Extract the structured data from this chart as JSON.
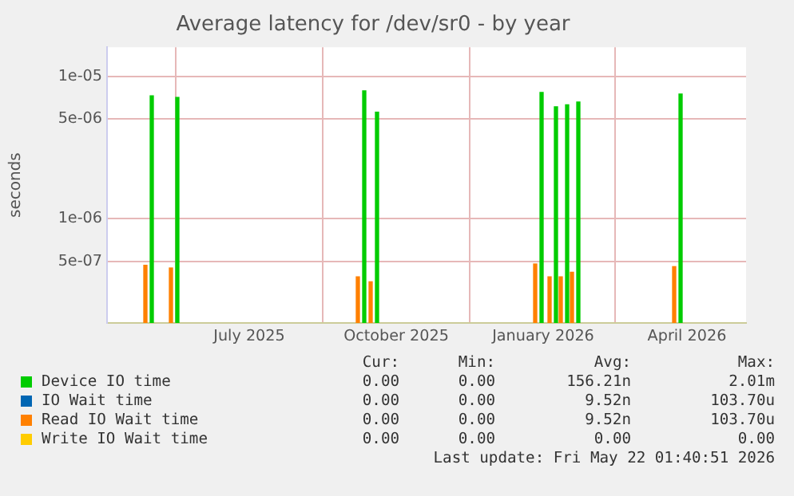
{
  "chart_data": {
    "type": "bar",
    "title": "Average latency for /dev/sr0 - by year",
    "ylabel": "seconds",
    "log": "y",
    "grid": true,
    "legend": "bottom",
    "xlim": [
      "2025-04-17",
      "2026-05-22"
    ],
    "xticks": [
      {
        "value": "2025-07-15",
        "label": "July 2025"
      },
      {
        "value": "2025-10-15",
        "label": "October 2025"
      },
      {
        "value": "2026-01-15",
        "label": "January 2026"
      },
      {
        "value": "2026-04-15",
        "label": "April 2026"
      }
    ],
    "ylim": [
      1.85e-07,
      1.6e-05
    ],
    "yticks": [
      {
        "value": 5e-07,
        "label": "5e-07"
      },
      {
        "value": 1e-06,
        "label": "1e-06"
      },
      {
        "value": 5e-06,
        "label": "5e-06"
      },
      {
        "value": 1e-05,
        "label": "1e-05"
      }
    ],
    "x": [
      "2025-05-12",
      "2025-05-28",
      "2025-09-22",
      "2025-09-30",
      "2026-01-11",
      "2026-01-20",
      "2026-01-27",
      "2026-02-03",
      "2026-04-08"
    ],
    "series": [
      {
        "name": "Device IO time",
        "color": "#00cc00",
        "values": [
          7.3e-06,
          7.1e-06,
          7.9e-06,
          5.6e-06,
          7.7e-06,
          6.1e-06,
          6.3e-06,
          6.6e-06,
          7.5e-06
        ]
      },
      {
        "name": "IO Wait time",
        "color": "#0066b3",
        "values": [
          null,
          null,
          null,
          null,
          null,
          null,
          null,
          null,
          null
        ]
      },
      {
        "name": "Read IO Wait time",
        "color": "#ff8000",
        "values": [
          4.7e-07,
          4.5e-07,
          3.9e-07,
          3.6e-07,
          4.8e-07,
          3.9e-07,
          3.9e-07,
          4.2e-07,
          4.6e-07
        ]
      },
      {
        "name": "Write IO Wait time",
        "color": "#ffcc00",
        "values": [
          null,
          null,
          null,
          null,
          null,
          null,
          null,
          null,
          null
        ]
      }
    ],
    "annotations": [
      "Cur:",
      "Min:",
      "Avg:",
      "Max:",
      "0.00",
      "0.00",
      "156.21n",
      "2.01m",
      "0.00",
      "0.00",
      "9.52n",
      "103.70u",
      "0.00",
      "0.00",
      "9.52n",
      "103.70u",
      "0.00",
      "0.00",
      "0.00",
      "0.00",
      "Last update: Fri May 22 01:40:51 2026"
    ]
  }
}
